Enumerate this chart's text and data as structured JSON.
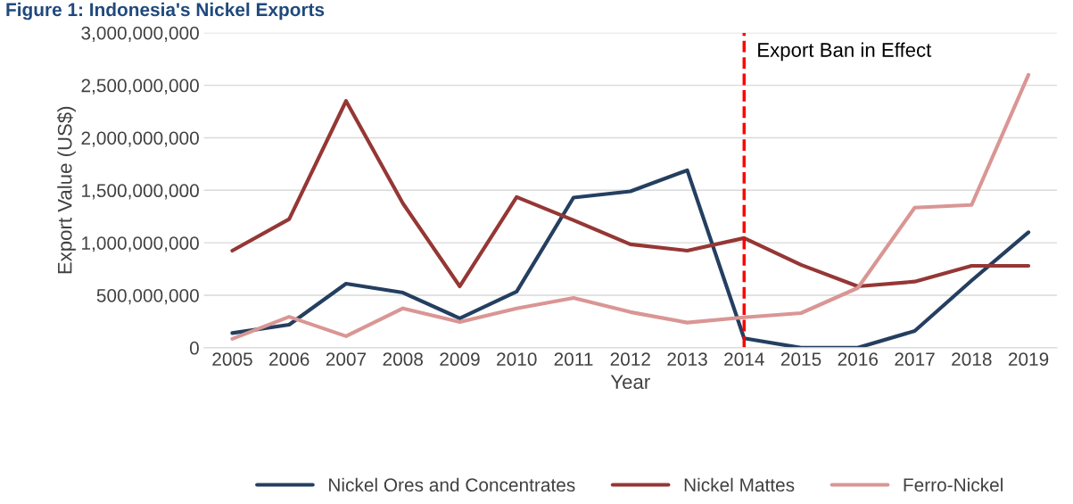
{
  "chart_data": {
    "type": "line",
    "title": "Figure 1: Indonesia's Nickel Exports",
    "xlabel": "Year",
    "ylabel": "Export Value (US$)",
    "categories": [
      "2005",
      "2006",
      "2007",
      "2008",
      "2009",
      "2010",
      "2011",
      "2012",
      "2013",
      "2014",
      "2015",
      "2016",
      "2017",
      "2018",
      "2019"
    ],
    "series": [
      {
        "name": "Nickel Ores and Concentrates",
        "color": "#243f60",
        "values": [
          140000000,
          220000000,
          610000000,
          525000000,
          280000000,
          535000000,
          1430000000,
          1490000000,
          1690000000,
          90000000,
          0,
          0,
          160000000,
          640000000,
          1100000000
        ]
      },
      {
        "name": "Nickel Mattes",
        "color": "#953735",
        "values": [
          925000000,
          1225000000,
          2350000000,
          1375000000,
          585000000,
          1435000000,
          1215000000,
          985000000,
          925000000,
          1045000000,
          790000000,
          585000000,
          630000000,
          780000000,
          780000000
        ]
      },
      {
        "name": "Ferro-Nickel",
        "color": "#d99694",
        "values": [
          85000000,
          295000000,
          110000000,
          375000000,
          245000000,
          375000000,
          475000000,
          340000000,
          240000000,
          290000000,
          330000000,
          570000000,
          1335000000,
          1360000000,
          2600000000
        ]
      }
    ],
    "ylim": [
      0,
      3000000000
    ],
    "yticks": [
      {
        "value": 0,
        "label": "0"
      },
      {
        "value": 500000000,
        "label": "500,000,000"
      },
      {
        "value": 1000000000,
        "label": "1,000,000,000"
      },
      {
        "value": 1500000000,
        "label": "1,500,000,000"
      },
      {
        "value": 2000000000,
        "label": "2,000,000,000"
      },
      {
        "value": 2500000000,
        "label": "2,500,000,000"
      },
      {
        "value": 3000000000,
        "label": "3,000,000,000"
      }
    ],
    "ref_lines": [
      {
        "axis": "x",
        "value": "2014",
        "label": "Export Ban in Effect",
        "color": "#ff0000",
        "line_style": "dashed"
      }
    ],
    "grid": "y",
    "legend": "bottom",
    "marker": "none",
    "line_style": "solid"
  }
}
